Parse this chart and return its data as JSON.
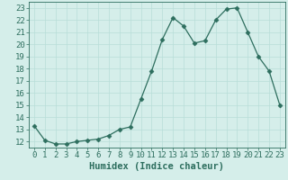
{
  "title": "",
  "xlabel": "Humidex (Indice chaleur)",
  "ylabel": "",
  "x_values": [
    0,
    1,
    2,
    3,
    4,
    5,
    6,
    7,
    8,
    9,
    10,
    11,
    12,
    13,
    14,
    15,
    16,
    17,
    18,
    19,
    20,
    21,
    22,
    23
  ],
  "y_values": [
    13.3,
    12.1,
    11.8,
    11.8,
    12.0,
    12.1,
    12.2,
    12.5,
    13.0,
    13.2,
    15.5,
    17.8,
    20.4,
    22.2,
    21.5,
    20.1,
    20.3,
    22.0,
    22.9,
    23.0,
    21.0,
    19.0,
    17.8,
    15.0
  ],
  "ylim_min": 11.5,
  "ylim_max": 23.5,
  "xlim_min": -0.5,
  "xlim_max": 23.5,
  "yticks": [
    12,
    13,
    14,
    15,
    16,
    17,
    18,
    19,
    20,
    21,
    22,
    23
  ],
  "xticks": [
    0,
    1,
    2,
    3,
    4,
    5,
    6,
    7,
    8,
    9,
    10,
    11,
    12,
    13,
    14,
    15,
    16,
    17,
    18,
    19,
    20,
    21,
    22,
    23
  ],
  "line_color": "#2d6e5e",
  "marker": "D",
  "marker_size": 2.5,
  "bg_color": "#d5eeea",
  "grid_color": "#b8ddd8",
  "axes_color": "#2d6e5e",
  "tick_label_fontsize": 6.5,
  "xlabel_fontsize": 7.5
}
